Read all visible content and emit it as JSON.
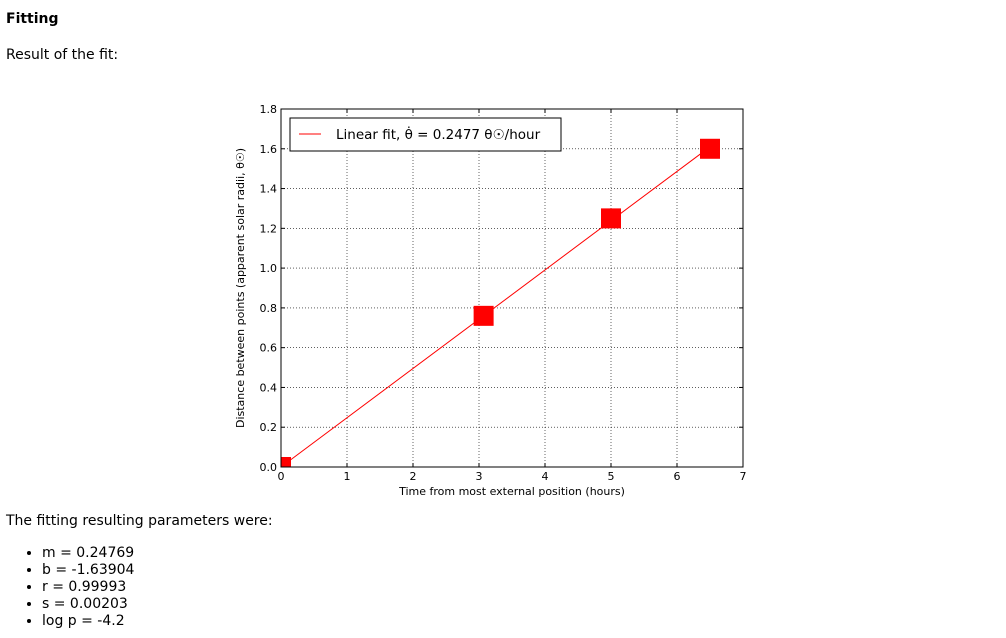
{
  "page": {
    "heading": "Fitting",
    "intro": "Result of the fit:",
    "params_title": "The fitting resulting parameters were:",
    "params": [
      "m = 0.24769",
      "b = -1.63904",
      "r = 0.99993",
      "s = 0.00203",
      "log p = -4.2"
    ]
  },
  "chart_data": {
    "type": "scatter",
    "title": "",
    "xlabel": "Time from most external position (hours)",
    "ylabel": "Distance between points (apparent solar radii, θ☉)",
    "xlim": [
      0,
      7
    ],
    "ylim": [
      0,
      1.8
    ],
    "xticks": [
      0,
      1,
      2,
      3,
      4,
      5,
      6,
      7
    ],
    "yticks": [
      0.0,
      0.2,
      0.4,
      0.6,
      0.8,
      1.0,
      1.2,
      1.4,
      1.6,
      1.8
    ],
    "grid": true,
    "legend": {
      "placement": "top-left",
      "text": "Linear fit, θ̇ = 0.2477 θ☉/hour"
    },
    "points": {
      "x": [
        0,
        3.07,
        5.0,
        6.5
      ],
      "y": [
        0.0,
        0.76,
        1.25,
        1.6
      ],
      "marker": "square",
      "color": "#ff0000"
    },
    "fit_line": {
      "x": [
        0,
        6.5
      ],
      "y": [
        0.0,
        1.61
      ],
      "color": "#ff0000"
    }
  }
}
